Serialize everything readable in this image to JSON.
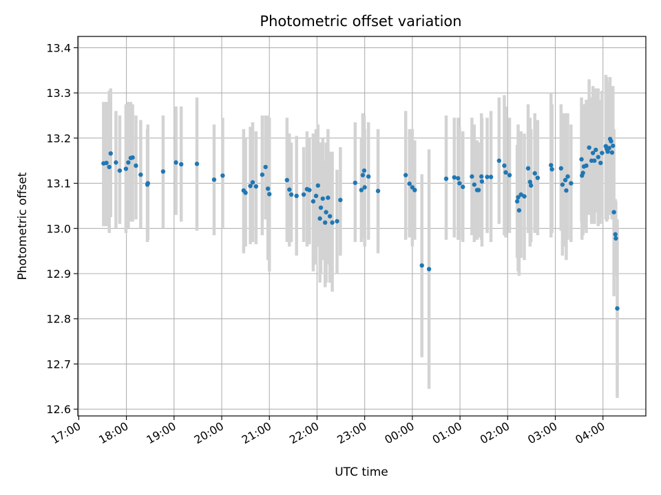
{
  "chart_data": {
    "type": "scatter",
    "title": "Photometric offset variation",
    "xlabel": "UTC time",
    "ylabel": "Photometric offset",
    "x_unit": "hours since 17:00 UTC",
    "xlim": [
      -0.02,
      11.9
    ],
    "ylim": [
      12.585,
      13.425
    ],
    "grid": true,
    "legend": "none",
    "colors": {
      "point": "#1f77b4",
      "errorbar": "#d3d3d3",
      "grid": "#b0b0b0",
      "axis": "#000000"
    },
    "x_ticks": [
      {
        "v": 0,
        "label": "17:00"
      },
      {
        "v": 1,
        "label": "18:00"
      },
      {
        "v": 2,
        "label": "19:00"
      },
      {
        "v": 3,
        "label": "20:00"
      },
      {
        "v": 4,
        "label": "21:00"
      },
      {
        "v": 5,
        "label": "22:00"
      },
      {
        "v": 6,
        "label": "23:00"
      },
      {
        "v": 7,
        "label": "00:00"
      },
      {
        "v": 8,
        "label": "01:00"
      },
      {
        "v": 9,
        "label": "02:00"
      },
      {
        "v": 10,
        "label": "03:00"
      },
      {
        "v": 11,
        "label": "04:00"
      }
    ],
    "y_ticks": [
      {
        "v": 12.6,
        "label": "12.6"
      },
      {
        "v": 12.7,
        "label": "12.7"
      },
      {
        "v": 12.8,
        "label": "12.8"
      },
      {
        "v": 12.9,
        "label": "12.9"
      },
      {
        "v": 13.0,
        "label": "13.0"
      },
      {
        "v": 13.1,
        "label": "13.1"
      },
      {
        "v": 13.2,
        "label": "13.2"
      },
      {
        "v": 13.3,
        "label": "13.3"
      },
      {
        "v": 13.4,
        "label": "13.4"
      }
    ],
    "points": [
      [
        0.52,
        13.144,
        13.005,
        13.28
      ],
      [
        0.58,
        13.145,
        13.005,
        13.28
      ],
      [
        0.64,
        13.136,
        12.99,
        13.305
      ],
      [
        0.67,
        13.166,
        13.025,
        13.31
      ],
      [
        0.78,
        13.146,
        13.0,
        13.26
      ],
      [
        0.86,
        13.128,
        13.01,
        13.25
      ],
      [
        0.99,
        13.132,
        12.99,
        13.275
      ],
      [
        1.04,
        13.146,
        13.0,
        13.28
      ],
      [
        1.09,
        13.156,
        13.015,
        13.28
      ],
      [
        1.13,
        13.157,
        13.015,
        13.275
      ],
      [
        1.2,
        13.139,
        13.02,
        13.25
      ],
      [
        1.3,
        13.119,
        13.0,
        13.24
      ],
      [
        1.44,
        13.097,
        12.97,
        13.22
      ],
      [
        1.45,
        13.1,
        12.975,
        13.23
      ],
      [
        1.77,
        13.126,
        13.0,
        13.25
      ],
      [
        2.04,
        13.146,
        13.03,
        13.27
      ],
      [
        2.15,
        13.142,
        13.015,
        13.27
      ],
      [
        2.48,
        13.143,
        12.995,
        13.29
      ],
      [
        2.84,
        13.108,
        12.985,
        13.23
      ],
      [
        3.02,
        13.117,
        13.0,
        13.245
      ],
      [
        3.46,
        13.084,
        12.945,
        13.22
      ],
      [
        3.5,
        13.079,
        12.96,
        13.2
      ],
      [
        3.6,
        13.094,
        12.965,
        13.225
      ],
      [
        3.65,
        13.102,
        12.97,
        13.235
      ],
      [
        3.72,
        13.093,
        12.965,
        13.215
      ],
      [
        3.85,
        13.119,
        12.985,
        13.25
      ],
      [
        3.92,
        13.136,
        13.02,
        13.25
      ],
      [
        3.97,
        13.088,
        12.93,
        13.25
      ],
      [
        4.0,
        13.076,
        12.905,
        13.245
      ],
      [
        4.37,
        13.107,
        12.97,
        13.245
      ],
      [
        4.42,
        13.086,
        12.96,
        13.21
      ],
      [
        4.46,
        13.075,
        12.97,
        13.19
      ],
      [
        4.57,
        13.072,
        12.94,
        13.205
      ],
      [
        4.72,
        13.075,
        12.97,
        13.18
      ],
      [
        4.79,
        13.087,
        12.96,
        13.215
      ],
      [
        4.84,
        13.085,
        12.965,
        13.2
      ],
      [
        4.92,
        13.06,
        12.905,
        13.21
      ],
      [
        4.98,
        13.072,
        12.92,
        13.22
      ],
      [
        5.02,
        13.095,
        12.96,
        13.23
      ],
      [
        5.06,
        13.022,
        12.88,
        13.19
      ],
      [
        5.08,
        13.046,
        12.9,
        13.19
      ],
      [
        5.12,
        13.066,
        12.93,
        13.2
      ],
      [
        5.17,
        13.013,
        12.87,
        13.15
      ],
      [
        5.19,
        13.036,
        12.88,
        13.19
      ],
      [
        5.23,
        13.068,
        12.92,
        13.22
      ],
      [
        5.27,
        13.027,
        12.88,
        13.17
      ],
      [
        5.32,
        13.013,
        12.86,
        13.17
      ],
      [
        5.42,
        13.016,
        12.9,
        13.13
      ],
      [
        5.49,
        13.063,
        12.94,
        13.18
      ],
      [
        5.8,
        13.101,
        12.97,
        13.235
      ],
      [
        5.93,
        13.085,
        12.97,
        13.2
      ],
      [
        5.96,
        13.118,
        12.98,
        13.255
      ],
      [
        5.99,
        13.128,
        13.005,
        13.25
      ],
      [
        6.0,
        13.091,
        12.96,
        13.22
      ],
      [
        6.08,
        13.115,
        12.975,
        13.235
      ],
      [
        6.28,
        13.083,
        12.945,
        13.22
      ],
      [
        6.86,
        13.118,
        12.975,
        13.26
      ],
      [
        6.94,
        13.099,
        12.98,
        13.22
      ],
      [
        7.0,
        13.091,
        12.96,
        13.22
      ],
      [
        7.05,
        13.085,
        12.975,
        13.195
      ],
      [
        7.2,
        12.918,
        12.715,
        13.12
      ],
      [
        7.35,
        12.91,
        12.645,
        13.175
      ],
      [
        7.71,
        13.11,
        12.975,
        13.25
      ],
      [
        7.88,
        13.113,
        12.98,
        13.245
      ],
      [
        7.96,
        13.111,
        12.975,
        13.245
      ],
      [
        7.99,
        13.1,
        12.975,
        13.225
      ],
      [
        8.06,
        13.092,
        12.97,
        13.215
      ],
      [
        8.25,
        13.115,
        12.985,
        13.245
      ],
      [
        8.3,
        13.097,
        12.97,
        13.23
      ],
      [
        8.36,
        13.085,
        12.975,
        13.195
      ],
      [
        8.39,
        13.085,
        12.98,
        13.19
      ],
      [
        8.45,
        13.115,
        12.975,
        13.255
      ],
      [
        8.46,
        13.104,
        12.96,
        13.245
      ],
      [
        8.57,
        13.114,
        12.99,
        13.245
      ],
      [
        8.65,
        13.114,
        12.97,
        13.26
      ],
      [
        8.82,
        13.15,
        13.01,
        13.29
      ],
      [
        8.93,
        13.139,
        12.985,
        13.295
      ],
      [
        8.96,
        13.124,
        12.98,
        13.27
      ],
      [
        9.04,
        13.118,
        12.99,
        13.245
      ],
      [
        9.2,
        13.06,
        12.935,
        13.185
      ],
      [
        9.22,
        13.069,
        12.905,
        13.23
      ],
      [
        9.24,
        13.04,
        12.895,
        13.185
      ],
      [
        9.28,
        13.075,
        12.935,
        13.215
      ],
      [
        9.35,
        13.071,
        12.93,
        13.21
      ],
      [
        9.43,
        13.133,
        12.99,
        13.275
      ],
      [
        9.47,
        13.103,
        12.96,
        13.245
      ],
      [
        9.49,
        13.095,
        12.97,
        13.22
      ],
      [
        9.57,
        13.122,
        12.99,
        13.255
      ],
      [
        9.63,
        13.112,
        12.985,
        13.24
      ],
      [
        9.91,
        13.14,
        12.98,
        13.3
      ],
      [
        9.93,
        13.131,
        12.99,
        13.275
      ],
      [
        10.12,
        13.133,
        12.995,
        13.275
      ],
      [
        10.15,
        13.097,
        12.94,
        13.255
      ],
      [
        10.21,
        13.107,
        12.96,
        13.255
      ],
      [
        10.23,
        13.084,
        12.93,
        13.24
      ],
      [
        10.26,
        13.115,
        12.975,
        13.255
      ],
      [
        10.33,
        13.1,
        12.97,
        13.23
      ],
      [
        10.55,
        13.153,
        13.015,
        13.29
      ],
      [
        10.56,
        13.117,
        12.975,
        13.26
      ],
      [
        10.58,
        13.123,
        12.985,
        13.26
      ],
      [
        10.6,
        13.137,
        13.0,
        13.275
      ],
      [
        10.65,
        13.139,
        12.99,
        13.285
      ],
      [
        10.71,
        13.179,
        13.03,
        13.33
      ],
      [
        10.76,
        13.15,
        13.01,
        13.29
      ],
      [
        10.79,
        13.167,
        13.02,
        13.315
      ],
      [
        10.82,
        13.15,
        13.01,
        13.29
      ],
      [
        10.85,
        13.174,
        13.035,
        13.31
      ],
      [
        10.9,
        13.158,
        13.005,
        13.31
      ],
      [
        10.95,
        13.145,
        13.01,
        13.285
      ],
      [
        10.98,
        13.167,
        13.025,
        13.305
      ],
      [
        11.06,
        13.182,
        13.02,
        13.34
      ],
      [
        11.08,
        13.176,
        13.015,
        13.335
      ],
      [
        11.1,
        13.17,
        13.02,
        13.32
      ],
      [
        11.13,
        13.178,
        13.03,
        13.325
      ],
      [
        11.15,
        13.198,
        13.06,
        13.335
      ],
      [
        11.17,
        13.193,
        13.08,
        13.31
      ],
      [
        11.19,
        13.168,
        13.02,
        13.315
      ],
      [
        11.21,
        13.183,
        13.05,
        13.315
      ],
      [
        11.23,
        13.036,
        12.85,
        13.22
      ],
      [
        11.26,
        12.987,
        12.91,
        13.065
      ],
      [
        11.27,
        12.978,
        12.895,
        13.06
      ],
      [
        11.3,
        12.823,
        12.625,
        13.02
      ]
    ]
  }
}
